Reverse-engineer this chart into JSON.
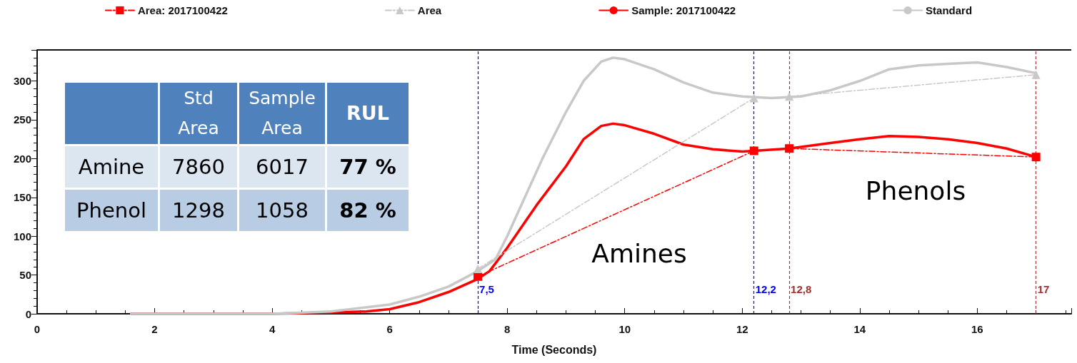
{
  "chart_data": {
    "type": "line",
    "xlabel": "Time (Seconds)",
    "xlim": [
      0,
      17.6
    ],
    "xticks": [
      0,
      2,
      4,
      6,
      8,
      10,
      12,
      14,
      16
    ],
    "ylim": [
      0,
      340
    ],
    "yticks": [
      0,
      50,
      100,
      150,
      200,
      250,
      300
    ],
    "grid": false,
    "legend": "top",
    "marker": "none",
    "line_style": "solid",
    "series": [
      {
        "name": "Area: 2017100422",
        "color": "#ff0000",
        "marker": "square",
        "line_style": "dashed",
        "x": [
          7.5,
          12.2,
          12.5,
          12.8,
          17
        ],
        "values": [
          48,
          210,
          null,
          213,
          202
        ]
      },
      {
        "name": "Area",
        "color": "#c8c8c8",
        "marker": "triangle",
        "line_style": "dashed",
        "x": [
          7.5,
          12.2,
          12.5,
          12.8,
          17
        ],
        "values": [
          58,
          278,
          null,
          280,
          308
        ]
      },
      {
        "name": "Sample: 2017100422",
        "color": "#ff0000",
        "x": [
          1.6,
          4,
          5.2,
          5.6,
          6,
          6.5,
          7,
          7.5,
          7.7,
          8,
          8.5,
          9,
          9.3,
          9.6,
          9.8,
          10,
          10.5,
          11,
          11.5,
          12,
          12.2,
          12.8,
          13.5,
          14,
          14.5,
          15,
          15.5,
          16,
          16.5,
          17
        ],
        "values": [
          0,
          0,
          2,
          3,
          6,
          15,
          28,
          45,
          55,
          85,
          140,
          190,
          225,
          242,
          245,
          243,
          232,
          218,
          212,
          209,
          210,
          213,
          220,
          225,
          229,
          228,
          225,
          220,
          213,
          202
        ]
      },
      {
        "name": "Standard",
        "color": "#c8c8c8",
        "x": [
          1.6,
          4,
          5,
          6,
          6.5,
          7,
          7.5,
          7.8,
          8,
          8.3,
          8.6,
          9,
          9.3,
          9.6,
          9.8,
          10,
          10.5,
          11,
          11.5,
          12,
          12.5,
          13,
          13.5,
          14,
          14.5,
          15,
          15.5,
          16,
          16.5,
          17
        ],
        "values": [
          0,
          0,
          3,
          12,
          22,
          35,
          55,
          70,
          100,
          150,
          200,
          260,
          300,
          325,
          330,
          328,
          315,
          298,
          285,
          280,
          278,
          280,
          288,
          300,
          315,
          320,
          322,
          324,
          318,
          310
        ]
      }
    ],
    "ref_lines": [
      {
        "axis": "x",
        "value": 7.5,
        "label": "7,5",
        "color": "#0000ff",
        "line_style": "dashed"
      },
      {
        "axis": "x",
        "value": 12.2,
        "label": "12,2",
        "color": "#0000ff",
        "line_style": "dashed"
      },
      {
        "axis": "x",
        "value": 12.8,
        "label": "12,8",
        "color": "#a03030",
        "line_style": "dashed"
      },
      {
        "axis": "x",
        "value": 17,
        "label": "17",
        "color": "#a03030",
        "line_style": "dashed"
      }
    ],
    "annotations": [
      "Std Area",
      "Sample Area",
      "RUL",
      "Amine",
      "7860",
      "6017",
      "77 %",
      "Phenol",
      "1298",
      "1058",
      "82 %",
      "Amines",
      "Phenols"
    ]
  }
}
